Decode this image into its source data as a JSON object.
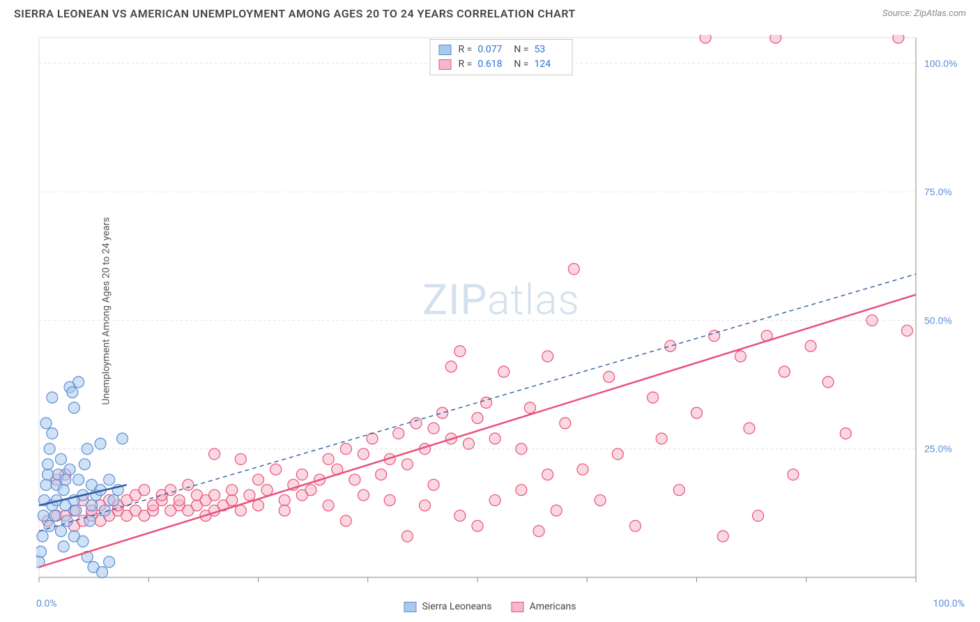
{
  "header": {
    "title": "SIERRA LEONEAN VS AMERICAN UNEMPLOYMENT AMONG AGES 20 TO 24 YEARS CORRELATION CHART",
    "source": "Source: ZipAtlas.com"
  },
  "chart": {
    "type": "scatter",
    "ylabel": "Unemployment Among Ages 20 to 24 years",
    "watermark": "ZIPatlas",
    "xlim": [
      0,
      100
    ],
    "ylim": [
      0,
      105
    ],
    "xtick_positions": [
      0,
      12.5,
      25,
      37.5,
      50,
      62.5,
      75,
      87.5,
      100
    ],
    "ytick_positions": [
      0,
      25,
      50,
      75,
      100
    ],
    "xtick_labels": {
      "0": "0.0%",
      "100": "100.0%"
    },
    "ytick_labels": {
      "25": "25.0%",
      "50": "50.0%",
      "75": "75.0%",
      "100": "100.0%"
    },
    "grid_color": "#dddddd",
    "axis_color": "#888888",
    "tick_label_color": "#5a8dd6",
    "background_color": "#ffffff",
    "marker_radius": 8,
    "marker_stroke_width": 1.2,
    "series": [
      {
        "name": "Sierra Leoneans",
        "fill": "#a8c8ec",
        "stroke": "#5a8dd6",
        "fill_opacity": 0.55,
        "R": "0.077",
        "N": "53",
        "trend": {
          "x1": 0,
          "y1": 14,
          "x2": 10,
          "y2": 18,
          "stroke": "#2c5aa0",
          "width": 2.5,
          "dash": "none"
        },
        "points": [
          [
            0,
            3
          ],
          [
            0.2,
            5
          ],
          [
            0.4,
            8
          ],
          [
            0.5,
            12
          ],
          [
            0.6,
            15
          ],
          [
            0.8,
            18
          ],
          [
            1,
            20
          ],
          [
            1,
            22
          ],
          [
            1.2,
            10
          ],
          [
            1.2,
            25
          ],
          [
            1.5,
            14
          ],
          [
            1.5,
            28
          ],
          [
            1.8,
            12
          ],
          [
            2,
            15
          ],
          [
            2,
            18
          ],
          [
            2.2,
            20
          ],
          [
            2.5,
            9
          ],
          [
            2.5,
            23
          ],
          [
            2.8,
            17
          ],
          [
            3,
            14
          ],
          [
            3,
            19
          ],
          [
            3.2,
            11
          ],
          [
            3.5,
            21
          ],
          [
            3.5,
            37
          ],
          [
            3.8,
            36
          ],
          [
            4,
            8
          ],
          [
            4,
            15
          ],
          [
            4.2,
            13
          ],
          [
            4.5,
            19
          ],
          [
            4.5,
            38
          ],
          [
            5,
            7
          ],
          [
            5,
            16
          ],
          [
            5.2,
            22
          ],
          [
            5.5,
            4
          ],
          [
            5.5,
            25
          ],
          [
            5.8,
            11
          ],
          [
            6,
            14
          ],
          [
            6,
            18
          ],
          [
            6.2,
            2
          ],
          [
            6.5,
            16
          ],
          [
            7,
            17
          ],
          [
            7,
            26
          ],
          [
            7.2,
            1
          ],
          [
            7.5,
            13
          ],
          [
            8,
            19
          ],
          [
            8,
            3
          ],
          [
            8.5,
            15
          ],
          [
            9,
            17
          ],
          [
            9.5,
            27
          ],
          [
            1.5,
            35
          ],
          [
            0.8,
            30
          ],
          [
            4,
            33
          ],
          [
            2.8,
            6
          ]
        ]
      },
      {
        "name": "Americans",
        "fill": "#f4b8c8",
        "stroke": "#e8507a",
        "fill_opacity": 0.55,
        "R": "0.618",
        "N": "124",
        "trend": {
          "x1": 0,
          "y1": 2,
          "x2": 100,
          "y2": 55,
          "stroke": "#e8507a",
          "width": 2.5,
          "dash": "none"
        },
        "points": [
          [
            1,
            11
          ],
          [
            2,
            12
          ],
          [
            2,
            19
          ],
          [
            3,
            12
          ],
          [
            3,
            20
          ],
          [
            4,
            10
          ],
          [
            4,
            13
          ],
          [
            5,
            11
          ],
          [
            5,
            15
          ],
          [
            6,
            12
          ],
          [
            6,
            13
          ],
          [
            7,
            11
          ],
          [
            7,
            14
          ],
          [
            8,
            12
          ],
          [
            8,
            15
          ],
          [
            9,
            13
          ],
          [
            9,
            14
          ],
          [
            10,
            12
          ],
          [
            10,
            15
          ],
          [
            11,
            13
          ],
          [
            11,
            16
          ],
          [
            12,
            12
          ],
          [
            12,
            17
          ],
          [
            13,
            13
          ],
          [
            13,
            14
          ],
          [
            14,
            15
          ],
          [
            14,
            16
          ],
          [
            15,
            13
          ],
          [
            15,
            17
          ],
          [
            16,
            14
          ],
          [
            16,
            15
          ],
          [
            17,
            13
          ],
          [
            17,
            18
          ],
          [
            18,
            14
          ],
          [
            18,
            16
          ],
          [
            19,
            15
          ],
          [
            19,
            12
          ],
          [
            20,
            13
          ],
          [
            20,
            16
          ],
          [
            20,
            24
          ],
          [
            21,
            14
          ],
          [
            22,
            15
          ],
          [
            22,
            17
          ],
          [
            23,
            23
          ],
          [
            23,
            13
          ],
          [
            24,
            16
          ],
          [
            25,
            14
          ],
          [
            25,
            19
          ],
          [
            26,
            17
          ],
          [
            27,
            21
          ],
          [
            28,
            15
          ],
          [
            28,
            13
          ],
          [
            29,
            18
          ],
          [
            30,
            16
          ],
          [
            30,
            20
          ],
          [
            31,
            17
          ],
          [
            32,
            19
          ],
          [
            33,
            14
          ],
          [
            33,
            23
          ],
          [
            34,
            21
          ],
          [
            35,
            25
          ],
          [
            35,
            11
          ],
          [
            36,
            19
          ],
          [
            37,
            24
          ],
          [
            37,
            16
          ],
          [
            38,
            27
          ],
          [
            39,
            20
          ],
          [
            40,
            23
          ],
          [
            40,
            15
          ],
          [
            41,
            28
          ],
          [
            42,
            22
          ],
          [
            42,
            8
          ],
          [
            43,
            30
          ],
          [
            44,
            25
          ],
          [
            44,
            14
          ],
          [
            45,
            29
          ],
          [
            45,
            18
          ],
          [
            46,
            32
          ],
          [
            47,
            27
          ],
          [
            47,
            41
          ],
          [
            48,
            12
          ],
          [
            48,
            44
          ],
          [
            49,
            26
          ],
          [
            50,
            31
          ],
          [
            50,
            10
          ],
          [
            51,
            34
          ],
          [
            52,
            15
          ],
          [
            52,
            27
          ],
          [
            53,
            40
          ],
          [
            55,
            17
          ],
          [
            55,
            25
          ],
          [
            56,
            33
          ],
          [
            57,
            9
          ],
          [
            58,
            43
          ],
          [
            58,
            20
          ],
          [
            59,
            13
          ],
          [
            60,
            30
          ],
          [
            61,
            60
          ],
          [
            62,
            21
          ],
          [
            64,
            15
          ],
          [
            65,
            39
          ],
          [
            66,
            24
          ],
          [
            68,
            10
          ],
          [
            70,
            35
          ],
          [
            71,
            27
          ],
          [
            72,
            45
          ],
          [
            73,
            17
          ],
          [
            75,
            32
          ],
          [
            76,
            105
          ],
          [
            77,
            47
          ],
          [
            78,
            8
          ],
          [
            80,
            43
          ],
          [
            81,
            29
          ],
          [
            82,
            12
          ],
          [
            83,
            47
          ],
          [
            84,
            105
          ],
          [
            85,
            40
          ],
          [
            86,
            20
          ],
          [
            88,
            45
          ],
          [
            90,
            38
          ],
          [
            92,
            28
          ],
          [
            95,
            50
          ],
          [
            98,
            105
          ],
          [
            99,
            48
          ]
        ]
      }
    ],
    "reference_line": {
      "x1": 0,
      "y1": 9,
      "x2": 100,
      "y2": 59,
      "stroke": "#2c5aa0",
      "width": 1.4,
      "dash": "6,5"
    },
    "legend_top": {
      "rows": [
        {
          "swatch_fill": "#a8c8ec",
          "swatch_stroke": "#5a8dd6",
          "r_label": "R =",
          "r_val": "0.077",
          "n_label": "N =",
          "n_val": "53"
        },
        {
          "swatch_fill": "#f4b8c8",
          "swatch_stroke": "#e8507a",
          "r_label": "R =",
          "r_val": "0.618",
          "n_label": "N =",
          "n_val": "124"
        }
      ]
    },
    "legend_bottom": [
      {
        "swatch_fill": "#a8c8ec",
        "swatch_stroke": "#5a8dd6",
        "label": "Sierra Leoneans"
      },
      {
        "swatch_fill": "#f4b8c8",
        "swatch_stroke": "#e8507a",
        "label": "Americans"
      }
    ]
  }
}
